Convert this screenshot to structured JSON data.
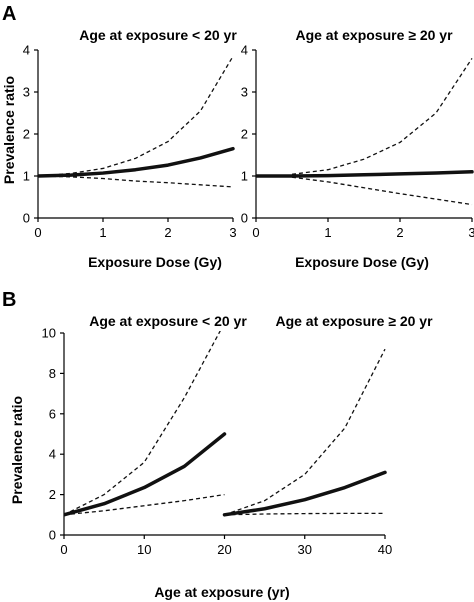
{
  "chart_data": [
    {
      "type": "line",
      "panel_label": "A",
      "title": "Age at exposure < 20 yr",
      "xlabel": "Exposure Dose (Gy)",
      "ylabel": "Prevalence ratio",
      "xlim": [
        0,
        3
      ],
      "ylim": [
        0,
        4
      ],
      "x_ticks": [
        "0",
        "1",
        "2",
        "3"
      ],
      "y_ticks": [
        "0",
        "1",
        "2",
        "3",
        "4"
      ],
      "series": [
        {
          "style": "estimate",
          "x": [
            0,
            0.5,
            1,
            1.5,
            2,
            2.5,
            3
          ],
          "y": [
            1.0,
            1.02,
            1.07,
            1.15,
            1.26,
            1.43,
            1.65
          ]
        },
        {
          "style": "upper-ci",
          "x": [
            0,
            0.5,
            1,
            1.5,
            2,
            2.5,
            3
          ],
          "y": [
            1.0,
            1.06,
            1.18,
            1.42,
            1.82,
            2.55,
            3.85
          ]
        },
        {
          "style": "lower-ci",
          "x": [
            0,
            0.5,
            1,
            1.5,
            2,
            2.5,
            3
          ],
          "y": [
            1.0,
            0.98,
            0.94,
            0.88,
            0.84,
            0.79,
            0.74
          ]
        }
      ]
    },
    {
      "type": "line",
      "panel_label": "",
      "title": "Age at exposure ≥ 20 yr",
      "xlabel": "Exposure Dose (Gy)",
      "ylabel": "",
      "xlim": [
        0,
        3
      ],
      "ylim": [
        0,
        4
      ],
      "x_ticks": [
        "0",
        "1",
        "2",
        "3"
      ],
      "y_ticks": [
        "0",
        "1",
        "2",
        "3",
        "4"
      ],
      "series": [
        {
          "style": "estimate",
          "x": [
            0,
            0.5,
            1,
            1.5,
            2,
            2.5,
            3
          ],
          "y": [
            1.0,
            1.0,
            1.01,
            1.03,
            1.05,
            1.07,
            1.1
          ]
        },
        {
          "style": "upper-ci",
          "x": [
            0.5,
            1,
            1.5,
            2,
            2.5,
            3
          ],
          "y": [
            1.04,
            1.15,
            1.4,
            1.8,
            2.5,
            3.8
          ]
        },
        {
          "style": "lower-ci",
          "x": [
            0.5,
            1,
            1.5,
            2,
            2.5,
            3
          ],
          "y": [
            0.97,
            0.86,
            0.72,
            0.58,
            0.45,
            0.32
          ]
        }
      ]
    },
    {
      "type": "line",
      "panel_label": "B",
      "title": "Age at exposure < 20 yr",
      "title_right": "Age at exposure ≥ 20 yr",
      "xlabel": "Age at exposure (yr)",
      "ylabel": "Prevalence ratio",
      "xlim": [
        0,
        40
      ],
      "ylim": [
        0,
        10
      ],
      "x_ticks": [
        "0",
        "10",
        "20",
        "30",
        "40"
      ],
      "y_ticks": [
        "0",
        "2",
        "4",
        "6",
        "8",
        "10"
      ],
      "series": [
        {
          "style": "estimate",
          "x": [
            0,
            5,
            10,
            15,
            20
          ],
          "y": [
            1.0,
            1.55,
            2.35,
            3.4,
            5.0
          ]
        },
        {
          "style": "upper-ci",
          "x": [
            0,
            5,
            10,
            15,
            20
          ],
          "y": [
            1.0,
            2.0,
            3.6,
            6.8,
            10.5
          ]
        },
        {
          "style": "lower-ci",
          "x": [
            0,
            5,
            10,
            15,
            20
          ],
          "y": [
            1.0,
            1.2,
            1.45,
            1.7,
            2.0
          ]
        },
        {
          "style": "estimate",
          "x": [
            20,
            25,
            30,
            35,
            40
          ],
          "y": [
            1.0,
            1.3,
            1.75,
            2.35,
            3.1
          ]
        },
        {
          "style": "upper-ci",
          "x": [
            20,
            25,
            30,
            35,
            40
          ],
          "y": [
            1.0,
            1.7,
            3.0,
            5.3,
            9.2
          ]
        },
        {
          "style": "lower-ci",
          "x": [
            20,
            25,
            30,
            35,
            40
          ],
          "y": [
            1.0,
            1.04,
            1.06,
            1.07,
            1.07
          ]
        }
      ]
    }
  ]
}
